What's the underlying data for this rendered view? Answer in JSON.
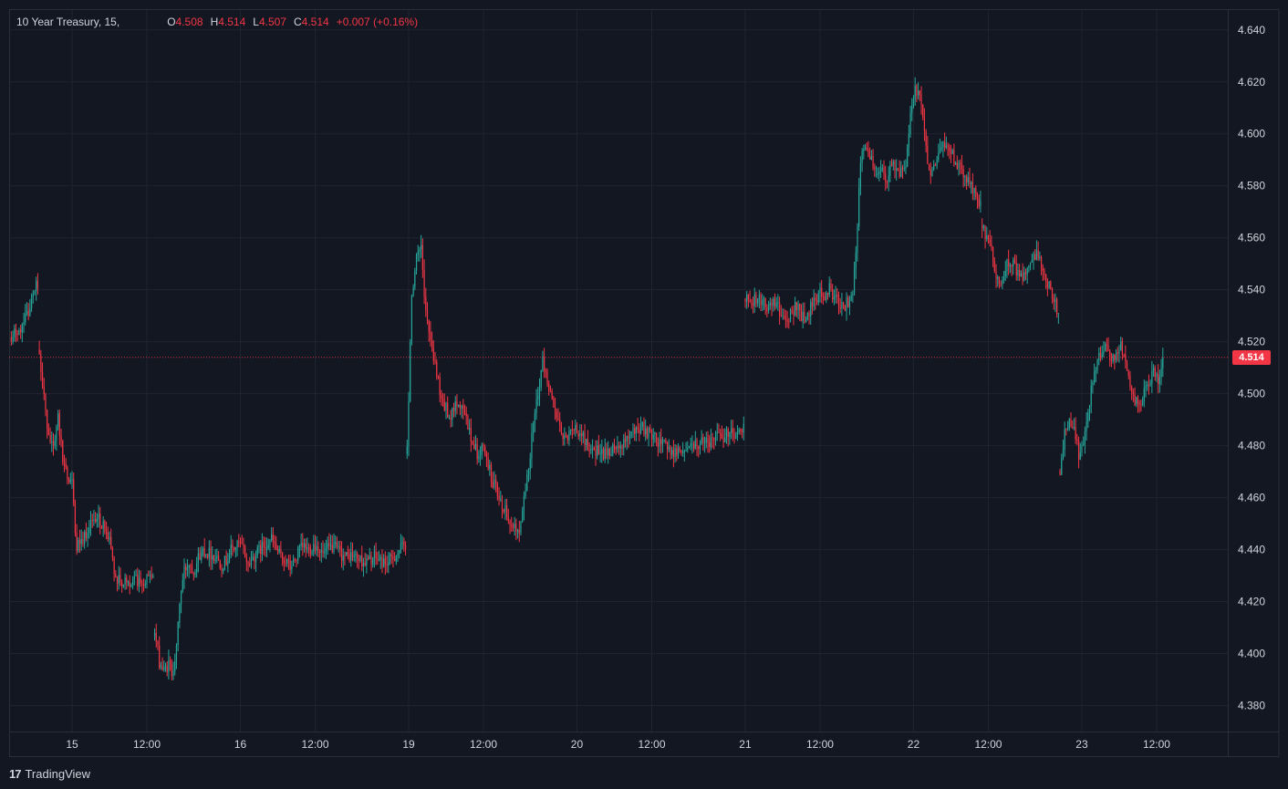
{
  "legend": {
    "symbol": "10 Year Treasury, 15,",
    "open_label": "O",
    "open": "4.508",
    "high_label": "H",
    "high": "4.514",
    "low_label": "L",
    "low": "4.507",
    "close_label": "C",
    "close": "4.514",
    "change": "+0.007 (+0.16%)"
  },
  "branding": {
    "logo_mark": "17",
    "name": "TradingView"
  },
  "last_price": {
    "label": "4.514",
    "value": 4.514
  },
  "colors": {
    "background": "#131722",
    "up": "#26a69a",
    "down": "#f23645",
    "grid": "#1f2430",
    "axis_text": "#d1d4dc",
    "last_price_line": "#f23645"
  },
  "chart_data": {
    "type": "candlestick",
    "interval": "15",
    "ylim": [
      4.37,
      4.648
    ],
    "y_ticks": [
      4.38,
      4.4,
      4.42,
      4.44,
      4.46,
      4.48,
      4.5,
      4.52,
      4.54,
      4.56,
      4.58,
      4.6,
      4.62,
      4.64
    ],
    "y_tick_labels": [
      "4.380",
      "4.400",
      "4.420",
      "4.440",
      "4.460",
      "4.480",
      "4.500",
      "4.520",
      "4.540",
      "4.560",
      "4.580",
      "4.600",
      "4.620",
      "4.640"
    ],
    "x_ticks": [
      {
        "label": "15",
        "bar": 0
      },
      {
        "label": "12:00",
        "bar": 48
      },
      {
        "label": "16",
        "bar": 108
      },
      {
        "label": "12:00",
        "bar": 156
      },
      {
        "label": "19",
        "bar": 216
      },
      {
        "label": "12:00",
        "bar": 264
      },
      {
        "label": "20",
        "bar": 324
      },
      {
        "label": "12:00",
        "bar": 372
      },
      {
        "label": "21",
        "bar": 432
      },
      {
        "label": "12:00",
        "bar": 480
      },
      {
        "label": "22",
        "bar": 540
      },
      {
        "label": "12:00",
        "bar": 588
      },
      {
        "label": "23",
        "bar": 648
      },
      {
        "label": "12:00",
        "bar": 696
      }
    ],
    "bars_first_index": -39,
    "bars_count": 755,
    "segments": [
      {
        "from": -39,
        "to": -22,
        "points": [
          [
            -39,
            4.52
          ],
          [
            -36,
            4.524
          ],
          [
            -32,
            4.526
          ],
          [
            -28,
            4.532
          ],
          [
            -25,
            4.538
          ],
          [
            -23,
            4.542
          ],
          [
            -22,
            4.54
          ]
        ]
      },
      {
        "from": -21,
        "to": 52,
        "points": [
          [
            -21,
            4.516
          ],
          [
            -19,
            4.505
          ],
          [
            -16,
            4.485
          ],
          [
            -12,
            4.48
          ],
          [
            -9,
            4.49
          ],
          [
            -6,
            4.475
          ],
          [
            -3,
            4.468
          ],
          [
            0,
            4.465
          ],
          [
            3,
            4.44
          ],
          [
            6,
            4.444
          ],
          [
            9,
            4.446
          ],
          [
            12,
            4.451
          ],
          [
            15,
            4.453
          ],
          [
            18,
            4.451
          ],
          [
            21,
            4.448
          ],
          [
            24,
            4.443
          ],
          [
            27,
            4.432
          ],
          [
            30,
            4.428
          ]
        ]
      },
      {
        "from": 53,
        "to": 214,
        "points": [
          [
            53,
            4.408
          ],
          [
            56,
            4.397
          ],
          [
            59,
            4.393
          ],
          [
            62,
            4.396
          ],
          [
            64,
            4.393
          ],
          [
            67,
            4.401
          ],
          [
            69,
            4.42
          ],
          [
            72,
            4.432
          ],
          [
            75,
            4.435
          ],
          [
            78,
            4.432
          ],
          [
            81,
            4.437
          ],
          [
            84,
            4.44
          ],
          [
            87,
            4.439
          ],
          [
            90,
            4.438
          ],
          [
            93,
            4.437
          ],
          [
            96,
            4.434
          ],
          [
            99,
            4.436
          ],
          [
            102,
            4.44
          ],
          [
            105,
            4.441
          ],
          [
            107,
            4.442
          ],
          [
            110,
            4.44
          ],
          [
            113,
            4.434
          ],
          [
            116,
            4.437
          ],
          [
            119,
            4.439
          ],
          [
            122,
            4.441
          ],
          [
            125,
            4.443
          ],
          [
            128,
            4.444
          ],
          [
            131,
            4.44
          ],
          [
            134,
            4.437
          ],
          [
            137,
            4.436
          ],
          [
            140,
            4.433
          ],
          [
            143,
            4.436
          ],
          [
            146,
            4.44
          ],
          [
            149,
            4.441
          ],
          [
            152,
            4.44
          ],
          [
            155,
            4.442
          ],
          [
            158,
            4.441
          ],
          [
            161,
            4.438
          ],
          [
            164,
            4.44
          ],
          [
            167,
            4.441
          ],
          [
            170,
            4.44
          ],
          [
            173,
            4.438
          ],
          [
            176,
            4.437
          ],
          [
            179,
            4.438
          ],
          [
            182,
            4.437
          ],
          [
            185,
            4.436
          ],
          [
            188,
            4.435
          ],
          [
            191,
            4.436
          ],
          [
            194,
            4.437
          ],
          [
            197,
            4.436
          ],
          [
            200,
            4.435
          ],
          [
            203,
            4.435
          ],
          [
            206,
            4.437
          ],
          [
            209,
            4.439
          ],
          [
            212,
            4.441
          ],
          [
            214,
            4.442
          ]
        ]
      },
      {
        "from": 215,
        "to": 431,
        "points": [
          [
            215,
            4.478
          ],
          [
            218,
            4.538
          ],
          [
            221,
            4.553
          ],
          [
            224,
            4.558
          ],
          [
            227,
            4.53
          ],
          [
            230,
            4.52
          ],
          [
            233,
            4.51
          ],
          [
            236,
            4.502
          ],
          [
            239,
            4.496
          ],
          [
            242,
            4.49
          ],
          [
            245,
            4.494
          ],
          [
            248,
            4.498
          ],
          [
            251,
            4.492
          ],
          [
            254,
            4.488
          ],
          [
            257,
            4.482
          ],
          [
            260,
            4.477
          ],
          [
            263,
            4.478
          ],
          [
            266,
            4.475
          ],
          [
            269,
            4.468
          ],
          [
            272,
            4.463
          ],
          [
            275,
            4.458
          ],
          [
            278,
            4.456
          ],
          [
            281,
            4.452
          ],
          [
            284,
            4.449
          ],
          [
            287,
            4.448
          ],
          [
            290,
            4.46
          ],
          [
            293,
            4.472
          ],
          [
            296,
            4.488
          ],
          [
            299,
            4.5
          ],
          [
            302,
            4.512
          ],
          [
            305,
            4.504
          ],
          [
            308,
            4.496
          ],
          [
            311,
            4.49
          ],
          [
            314,
            4.484
          ],
          [
            317,
            4.483
          ],
          [
            320,
            4.486
          ],
          [
            323,
            4.488
          ],
          [
            326,
            4.485
          ],
          [
            329,
            4.482
          ],
          [
            332,
            4.48
          ],
          [
            335,
            4.479
          ],
          [
            338,
            4.477
          ],
          [
            341,
            4.476
          ],
          [
            344,
            4.478
          ],
          [
            347,
            4.479
          ],
          [
            350,
            4.48
          ],
          [
            353,
            4.481
          ],
          [
            356,
            4.482
          ],
          [
            359,
            4.484
          ],
          [
            362,
            4.486
          ],
          [
            365,
            4.487
          ],
          [
            368,
            4.486
          ],
          [
            371,
            4.484
          ],
          [
            374,
            4.483
          ],
          [
            377,
            4.481
          ],
          [
            380,
            4.48
          ],
          [
            383,
            4.479
          ],
          [
            386,
            4.478
          ],
          [
            389,
            4.478
          ],
          [
            392,
            4.478
          ],
          [
            395,
            4.479
          ],
          [
            398,
            4.48
          ],
          [
            401,
            4.48
          ],
          [
            404,
            4.481
          ],
          [
            407,
            4.481
          ],
          [
            410,
            4.482
          ],
          [
            413,
            4.483
          ],
          [
            416,
            4.483
          ],
          [
            419,
            4.484
          ],
          [
            422,
            4.484
          ],
          [
            425,
            4.485
          ],
          [
            428,
            4.485
          ],
          [
            431,
            4.486
          ]
        ]
      },
      {
        "from": 432,
        "to": 516,
        "points": [
          [
            432,
            4.536
          ],
          [
            436,
            4.535
          ],
          [
            440,
            4.538
          ],
          [
            444,
            4.535
          ],
          [
            447,
            4.533
          ],
          [
            450,
            4.536
          ],
          [
            453,
            4.534
          ],
          [
            456,
            4.53
          ],
          [
            459,
            4.528
          ],
          [
            462,
            4.532
          ],
          [
            465,
            4.534
          ],
          [
            468,
            4.53
          ],
          [
            471,
            4.527
          ],
          [
            474,
            4.534
          ],
          [
            477,
            4.537
          ],
          [
            480,
            4.539
          ],
          [
            483,
            4.538
          ],
          [
            486,
            4.54
          ],
          [
            489,
            4.538
          ],
          [
            492,
            4.535
          ],
          [
            495,
            4.534
          ],
          [
            498,
            4.535
          ],
          [
            501,
            4.537
          ],
          [
            503,
            4.556
          ],
          [
            506,
            4.588
          ],
          [
            509,
            4.597
          ],
          [
            512,
            4.59
          ],
          [
            515,
            4.588
          ],
          [
            516,
            4.586
          ]
        ]
      },
      {
        "from": 517,
        "to": 583,
        "points": [
          [
            517,
            4.586
          ],
          [
            520,
            4.585
          ],
          [
            523,
            4.583
          ],
          [
            526,
            4.59
          ],
          [
            529,
            4.586
          ],
          [
            532,
            4.585
          ],
          [
            535,
            4.588
          ],
          [
            538,
            4.606
          ],
          [
            541,
            4.617
          ],
          [
            544,
            4.614
          ],
          [
            547,
            4.6
          ],
          [
            550,
            4.585
          ],
          [
            553,
            4.588
          ],
          [
            556,
            4.592
          ],
          [
            559,
            4.598
          ],
          [
            562,
            4.594
          ],
          [
            565,
            4.592
          ],
          [
            568,
            4.588
          ],
          [
            571,
            4.585
          ],
          [
            574,
            4.583
          ],
          [
            577,
            4.58
          ],
          [
            580,
            4.575
          ],
          [
            583,
            4.574
          ]
        ]
      },
      {
        "from": 584,
        "to": 633,
        "points": [
          [
            584,
            4.565
          ],
          [
            587,
            4.56
          ],
          [
            590,
            4.555
          ],
          [
            593,
            4.545
          ],
          [
            596,
            4.54
          ],
          [
            599,
            4.548
          ],
          [
            602,
            4.552
          ],
          [
            605,
            4.548
          ],
          [
            608,
            4.546
          ],
          [
            611,
            4.545
          ],
          [
            614,
            4.55
          ],
          [
            617,
            4.552
          ],
          [
            620,
            4.553
          ],
          [
            623,
            4.548
          ],
          [
            626,
            4.543
          ],
          [
            629,
            4.538
          ],
          [
            632,
            4.532
          ],
          [
            633,
            4.53
          ]
        ]
      },
      {
        "from": 634,
        "to": 700,
        "points": [
          [
            634,
            4.47
          ],
          [
            637,
            4.484
          ],
          [
            640,
            4.49
          ],
          [
            643,
            4.488
          ],
          [
            646,
            4.477
          ],
          [
            649,
            4.48
          ],
          [
            652,
            4.494
          ],
          [
            655,
            4.504
          ],
          [
            658,
            4.513
          ],
          [
            661,
            4.515
          ],
          [
            664,
            4.518
          ],
          [
            667,
            4.512
          ],
          [
            670,
            4.514
          ],
          [
            673,
            4.518
          ],
          [
            676,
            4.512
          ],
          [
            679,
            4.505
          ],
          [
            682,
            4.498
          ],
          [
            685,
            4.495
          ],
          [
            688,
            4.5
          ],
          [
            691,
            4.505
          ],
          [
            694,
            4.508
          ],
          [
            697,
            4.504
          ],
          [
            700,
            4.514
          ]
        ]
      }
    ],
    "last": {
      "open": 4.508,
      "high": 4.514,
      "low": 4.507,
      "close": 4.514
    }
  }
}
